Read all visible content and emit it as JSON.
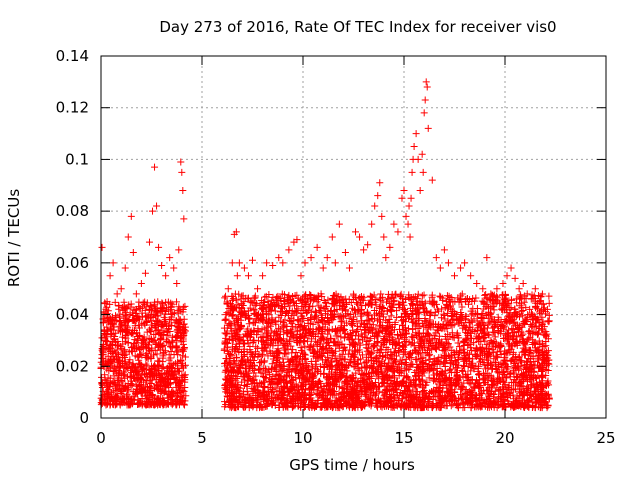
{
  "chart_data": {
    "type": "scatter",
    "title": "Day 273 of 2016, Rate Of TEC Index for receiver vis0",
    "xlabel": "GPS time / hours",
    "ylabel": "ROTI / TECUs",
    "xlim": [
      0,
      25
    ],
    "ylim": [
      0,
      0.14
    ],
    "x_ticks": [
      "0",
      "5",
      "10",
      "15",
      "20",
      "25"
    ],
    "y_ticks": [
      "0",
      "0.02",
      "0.04",
      "0.06",
      "0.08",
      "0.1",
      "0.12",
      "0.14"
    ],
    "grid": true,
    "marker": "+",
    "color": "#ff0000",
    "series": [
      {
        "name": "vis0",
        "x": [
          0.05,
          0.05,
          0.3,
          0.45,
          0.6,
          0.8,
          1.0,
          1.2,
          1.35,
          1.5,
          1.6,
          1.75,
          2.0,
          2.2,
          2.4,
          2.55,
          2.65,
          2.75,
          2.85,
          3.0,
          3.2,
          3.4,
          3.6,
          3.75,
          3.85,
          3.95,
          4.0,
          4.05,
          4.1,
          6.3,
          6.5,
          6.6,
          6.7,
          6.75,
          6.85,
          7.1,
          7.3,
          7.5,
          7.75,
          8.0,
          8.2,
          8.5,
          8.8,
          9.0,
          9.3,
          9.55,
          9.7,
          9.9,
          10.1,
          10.4,
          10.7,
          11.0,
          11.2,
          11.45,
          11.6,
          11.8,
          12.1,
          12.3,
          12.6,
          12.8,
          13.0,
          13.2,
          13.4,
          13.55,
          13.7,
          13.8,
          13.9,
          14.0,
          14.1,
          14.3,
          14.5,
          14.7,
          14.9,
          15.0,
          15.1,
          15.2,
          15.25,
          15.3,
          15.35,
          15.4,
          15.45,
          15.5,
          15.6,
          15.7,
          15.8,
          15.9,
          15.95,
          16.0,
          16.05,
          16.1,
          16.15,
          16.2,
          16.4,
          16.6,
          16.8,
          17.0,
          17.2,
          17.5,
          17.8,
          18.0,
          18.3,
          18.6,
          18.9,
          19.1,
          19.3,
          19.6,
          19.9,
          20.1,
          20.3,
          20.5,
          20.7,
          20.9,
          21.1,
          21.3,
          21.5,
          21.7,
          21.9,
          22.1
        ],
        "y": [
          0.066,
          0.031,
          0.045,
          0.055,
          0.06,
          0.048,
          0.05,
          0.058,
          0.07,
          0.078,
          0.064,
          0.048,
          0.052,
          0.056,
          0.068,
          0.08,
          0.097,
          0.082,
          0.066,
          0.059,
          0.055,
          0.062,
          0.058,
          0.052,
          0.065,
          0.099,
          0.095,
          0.088,
          0.077,
          0.05,
          0.06,
          0.071,
          0.072,
          0.055,
          0.06,
          0.058,
          0.055,
          0.061,
          0.05,
          0.055,
          0.06,
          0.059,
          0.062,
          0.06,
          0.065,
          0.068,
          0.069,
          0.055,
          0.06,
          0.062,
          0.066,
          0.058,
          0.062,
          0.07,
          0.06,
          0.075,
          0.064,
          0.058,
          0.072,
          0.07,
          0.065,
          0.067,
          0.075,
          0.082,
          0.086,
          0.091,
          0.078,
          0.07,
          0.062,
          0.066,
          0.075,
          0.072,
          0.085,
          0.088,
          0.078,
          0.075,
          0.082,
          0.07,
          0.085,
          0.095,
          0.1,
          0.105,
          0.11,
          0.1,
          0.088,
          0.102,
          0.095,
          0.118,
          0.123,
          0.13,
          0.128,
          0.112,
          0.092,
          0.062,
          0.058,
          0.065,
          0.06,
          0.055,
          0.058,
          0.06,
          0.055,
          0.052,
          0.05,
          0.062,
          0.048,
          0.05,
          0.052,
          0.055,
          0.058,
          0.054,
          0.05,
          0.052,
          0.048,
          0.046,
          0.05,
          0.045,
          0.044,
          0.042
        ]
      }
    ],
    "dense_bands": [
      {
        "x_range": [
          0.0,
          4.2
        ],
        "y_range": [
          0.005,
          0.045
        ]
      },
      {
        "x_range": [
          6.1,
          22.2
        ],
        "y_range": [
          0.004,
          0.048
        ]
      }
    ]
  }
}
